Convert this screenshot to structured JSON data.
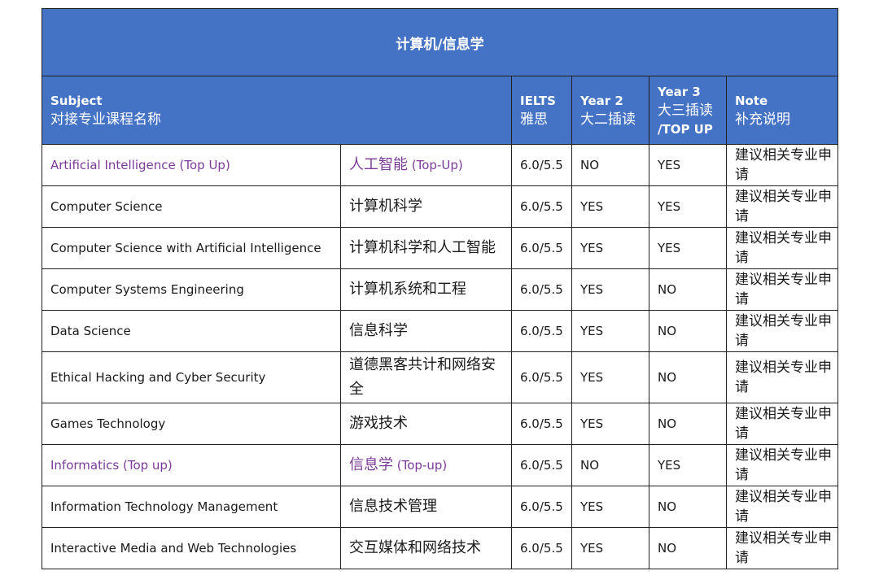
{
  "table": {
    "title": "计算机/信息学",
    "headers": {
      "subject_en": "Subject",
      "subject_cn": "对接专业课程名称",
      "ielts_en": "IELTS",
      "ielts_cn": "雅思",
      "year2_en": "Year 2",
      "year2_cn": "大二插读",
      "year3_en": "Year 3",
      "year3_cn": "大三插读",
      "year3_extra": "/TOP UP",
      "note_en": "Note",
      "note_cn": "补充说明"
    },
    "rows": [
      {
        "subject": "Artificial Intelligence (Top Up)",
        "chinese": "人工智能",
        "chinese_suffix": " (Top-Up)",
        "ielts": "6.0/5.5",
        "year2": "NO",
        "year3": "YES",
        "note": "建议相关专业申请"
      },
      {
        "subject": "Computer Science",
        "chinese": "计算机科学",
        "chinese_suffix": "",
        "ielts": "6.0/5.5",
        "year2": "YES",
        "year3": "YES",
        "note": "建议相关专业申请"
      },
      {
        "subject": "Computer Science with Artificial Intelligence",
        "chinese": "计算机科学和人工智能",
        "chinese_suffix": "",
        "ielts": "6.0/5.5",
        "year2": "YES",
        "year3": "YES",
        "note": "建议相关专业申请"
      },
      {
        "subject": "Computer Systems Engineering",
        "chinese": "计算机系统和工程",
        "chinese_suffix": "",
        "ielts": "6.0/5.5",
        "year2": "YES",
        "year3": "NO",
        "note": "建议相关专业申请"
      },
      {
        "subject": "Data Science",
        "chinese": "信息科学",
        "chinese_suffix": "",
        "ielts": "6.0/5.5",
        "year2": "YES",
        "year3": "NO",
        "note": "建议相关专业申请"
      },
      {
        "subject": "Ethical Hacking and Cyber Security",
        "chinese": "道德黑客共计和网络安全",
        "chinese_suffix": "",
        "ielts": "6.0/5.5",
        "year2": "YES",
        "year3": "NO",
        "note": "建议相关专业申请"
      },
      {
        "subject": "Games Technology",
        "chinese": "游戏技术",
        "chinese_suffix": "",
        "ielts": "6.0/5.5",
        "year2": "YES",
        "year3": "NO",
        "note": "建议相关专业申请"
      },
      {
        "subject": "Informatics (Top up)",
        "chinese": "信息学",
        "chinese_suffix": " (Top-up)",
        "ielts": "6.0/5.5",
        "year2": "NO",
        "year3": "YES",
        "note": "建议相关专业申请"
      },
      {
        "subject": "Information Technology Management",
        "chinese": "信息技术管理",
        "chinese_suffix": "",
        "ielts": "6.0/5.5",
        "year2": "YES",
        "year3": "NO",
        "note": "建议相关专业申请"
      },
      {
        "subject": "Interactive Media and Web Technologies",
        "chinese": "交互媒体和网络技术",
        "chinese_suffix": "",
        "ielts": "6.0/5.5",
        "year2": "YES",
        "year3": "NO",
        "note": "建议相关专业申请"
      }
    ]
  }
}
